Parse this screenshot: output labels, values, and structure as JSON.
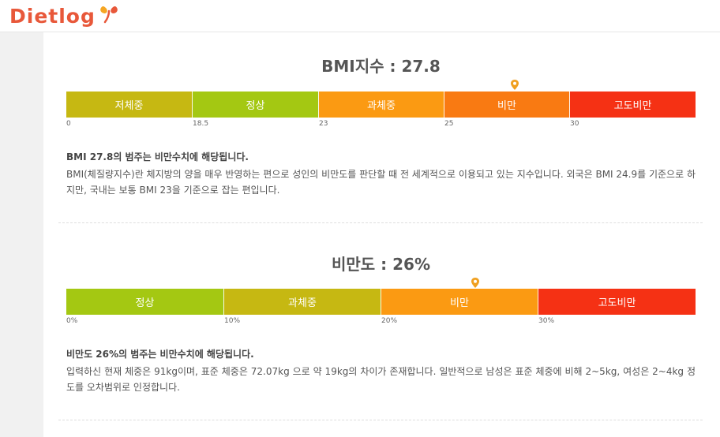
{
  "header": {
    "logo_text": "Dietlog"
  },
  "bmi": {
    "title": "BMI지수 : 27.8",
    "value": 27.8,
    "segments": [
      {
        "label": "저체중",
        "color": "#c6b812"
      },
      {
        "label": "정상",
        "color": "#a4c812"
      },
      {
        "label": "과체중",
        "color": "#fb9a12"
      },
      {
        "label": "비만",
        "color": "#f97a12"
      },
      {
        "label": "고도비만",
        "color": "#f53114"
      }
    ],
    "ticks": [
      "0",
      "18.5",
      "23",
      "25",
      "30"
    ],
    "verdict": "BMI 27.8의 범주는 비만수치에 해당됩니다.",
    "description": "BMI(체질량지수)란 체지방의 양을 매우 반영하는 편으로 성인의 비만도를 판단할 때 전 세계적으로 이용되고 있는 지수입니다. 외국은 BMI 24.9를 기준으로 하지만, 국내는 보통 BMI 23을 기준으로 잡는 편입니다."
  },
  "obesity": {
    "title": "비만도 : 26%",
    "value_percent": 26,
    "segments": [
      {
        "label": "정상",
        "color": "#a4c812"
      },
      {
        "label": "과체중",
        "color": "#c6b812"
      },
      {
        "label": "비만",
        "color": "#fb9a12"
      },
      {
        "label": "고도비만",
        "color": "#f53114"
      }
    ],
    "ticks": [
      "0%",
      "10%",
      "20%",
      "30%"
    ],
    "verdict": "비만도 26%의 범주는 비만수치에 해당됩니다.",
    "description": "입력하신 현재 체중은 91kg이며, 표준 체중은 72.07kg 으로 약 19kg의 차이가 존재합니다. 일반적으로 남성은 표준 체중에 비해 2~5kg, 여성은 2~4kg 정도를 오차범위로 인정합니다."
  },
  "colors": {
    "pin": "#f0a020",
    "title_text": "#555555"
  }
}
